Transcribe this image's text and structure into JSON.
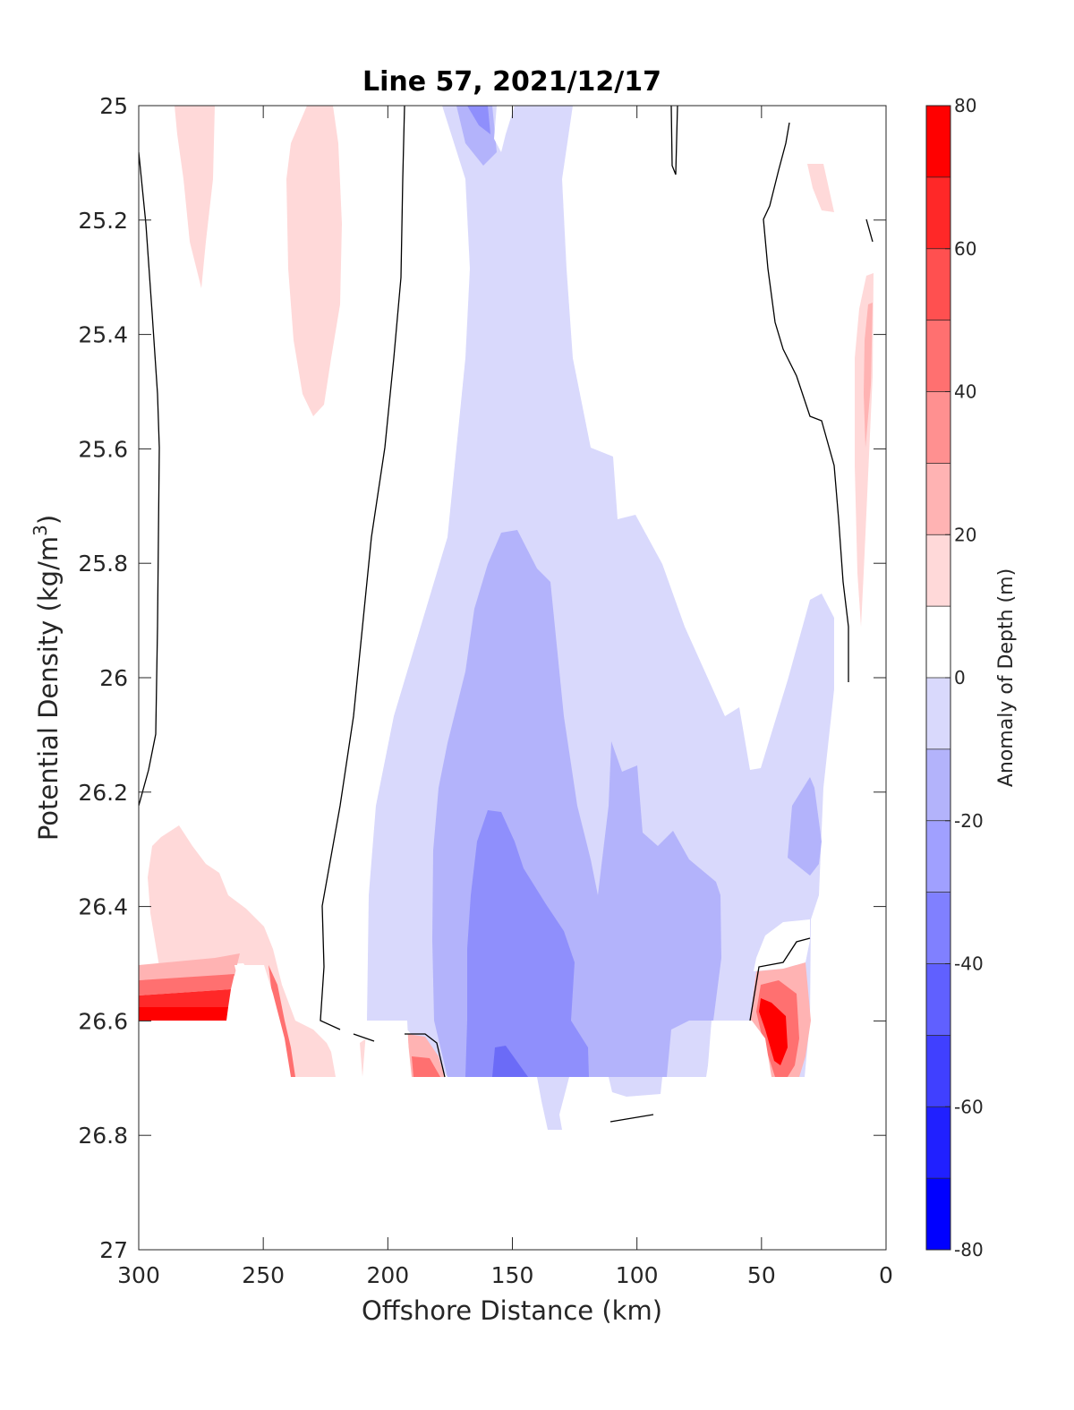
{
  "chart_data": {
    "type": "heatmap",
    "subtype": "filled-contour section",
    "title": "Line 57, 2021/12/17",
    "xlabel": "Offshore Distance (km)",
    "ylabel": "Potential Density (kg/m",
    "ylabel_sup": "3",
    "ylabel_close": ")",
    "x_reversed": true,
    "y_reversed": true,
    "xlim": [
      300,
      0
    ],
    "ylim": [
      25,
      27
    ],
    "xticks": [
      "300",
      "250",
      "200",
      "150",
      "100",
      "50",
      "0"
    ],
    "yticks": [
      "25",
      "25.2",
      "25.4",
      "25.6",
      "25.8",
      "26",
      "26.2",
      "26.4",
      "26.6",
      "26.8",
      "27"
    ],
    "colorbar": {
      "label": "Anomaly of Depth (m)",
      "range": [
        -80,
        80
      ],
      "step": 10,
      "ticks": [
        "80",
        "60",
        "40",
        "20",
        "0",
        "-20",
        "-40",
        "-60",
        "-80"
      ],
      "colors": [
        "#0000ff",
        "#2020ff",
        "#4040ff",
        "#6060ff",
        "#8080ff",
        "#a0a0ff",
        "#b3b3fb",
        "#d9d9fc",
        "#ffffff",
        "#ffd9d9",
        "#ffb3b3",
        "#ff9090",
        "#ff7070",
        "#ff5050",
        "#ff2828",
        "#ff0000"
      ],
      "legend_placement": "right"
    },
    "zero_contour_color": "#000000",
    "grid": false
  },
  "regions": [
    {
      "level": "-10 to -20",
      "color": "#d9d9fc",
      "label": "central negative anomaly core, x 175-35 km, sigma 25.0-26.8"
    },
    {
      "level": "-20 to -30",
      "color": "#b3b3fb",
      "label": "deeper negative core, x 170-70 km, sigma 25.72-26.7"
    },
    {
      "level": "-30 to -40",
      "color": "#8080ff",
      "label": "deepest negative core near x 150 km, sigma 26.2-26.7"
    },
    {
      "level": "10 to 20",
      "color": "#ffd9d9",
      "label": "positive lobes near x 285, 230, 10 km in upper layer"
    },
    {
      "level": "> 30",
      "color": "#ff0000",
      "label": "strong positive anomaly near x 280 and 45 km at sigma 26.5-26.7"
    }
  ]
}
